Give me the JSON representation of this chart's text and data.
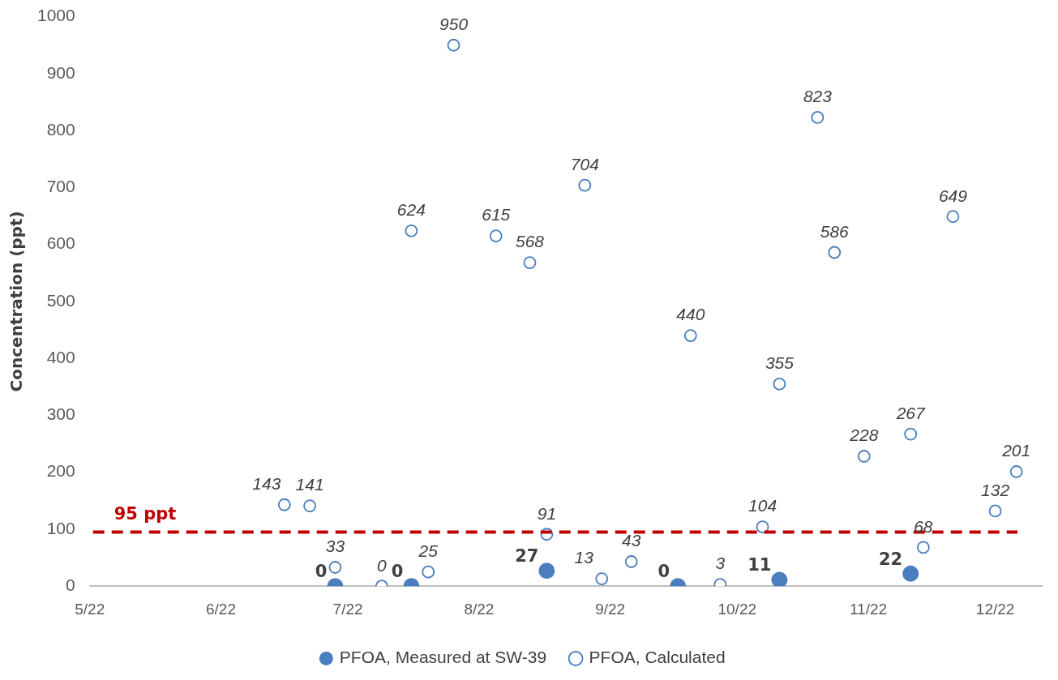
{
  "chart_data": {
    "type": "scatter",
    "ylabel": "Concentration (ppt)",
    "xlim": [
      "2022-05-01",
      "2022-12-12"
    ],
    "xticks": [
      {
        "value": "2022-05-01",
        "label": "5/22"
      },
      {
        "value": "2022-06-01",
        "label": "6/22"
      },
      {
        "value": "2022-07-01",
        "label": "7/22"
      },
      {
        "value": "2022-08-01",
        "label": "8/22"
      },
      {
        "value": "2022-09-01",
        "label": "9/22"
      },
      {
        "value": "2022-10-01",
        "label": "10/22"
      },
      {
        "value": "2022-11-01",
        "label": "11/22"
      },
      {
        "value": "2022-12-01",
        "label": "12/22"
      }
    ],
    "ylim": [
      0,
      1000
    ],
    "yticks": [
      0,
      100,
      200,
      300,
      400,
      500,
      600,
      700,
      800,
      900,
      1000
    ],
    "series": [
      {
        "name": "PFOA, Measured at SW-39",
        "color": "#4a7ebf",
        "x": [
          "2022-06-28",
          "2022-07-16",
          "2022-08-17",
          "2022-09-17",
          "2022-10-11",
          "2022-11-11"
        ],
        "values": [
          0,
          0,
          27,
          0,
          11,
          22
        ]
      },
      {
        "name": "PFOA, Calculated",
        "color": "#4a7ebf",
        "x": [
          "2022-06-16",
          "2022-06-22",
          "2022-06-28",
          "2022-07-09",
          "2022-07-16",
          "2022-07-20",
          "2022-07-26",
          "2022-08-05",
          "2022-08-13",
          "2022-08-17",
          "2022-08-26",
          "2022-08-30",
          "2022-09-06",
          "2022-09-20",
          "2022-09-27",
          "2022-10-07",
          "2022-10-11",
          "2022-10-20",
          "2022-10-24",
          "2022-10-31",
          "2022-11-11",
          "2022-11-14",
          "2022-11-21",
          "2022-12-01",
          "2022-12-06"
        ],
        "values": [
          143,
          141,
          33,
          0,
          624,
          25,
          950,
          615,
          568,
          91,
          704,
          13,
          43,
          440,
          3,
          104,
          355,
          823,
          586,
          228,
          267,
          68,
          649,
          132,
          201
        ]
      }
    ],
    "ref_lines": [
      {
        "axis": "y",
        "value": 95,
        "label": "95 ppt",
        "color": "#c00000",
        "line_style": "dashed"
      }
    ],
    "data_labels": true,
    "marker": "circle",
    "grid": false,
    "legend": "bottom"
  }
}
